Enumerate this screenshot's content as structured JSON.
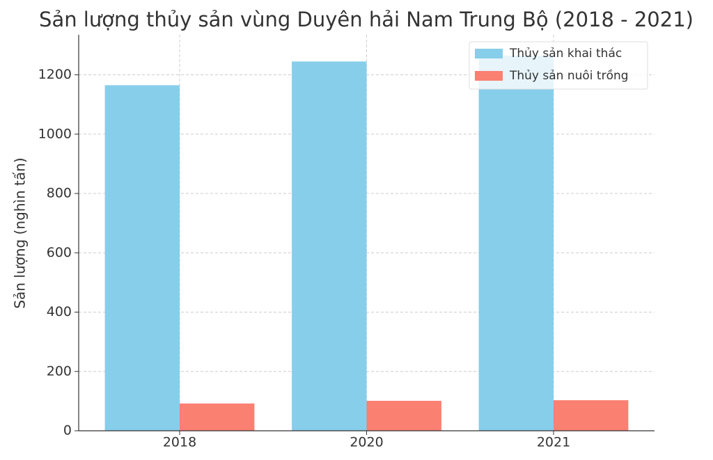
{
  "chart_data": {
    "type": "bar",
    "title": "Sản lượng thủy sản vùng Duyên hải Nam Trung Bộ (2018 - 2021)",
    "y_label": "Sản lượng (nghìn tấn)",
    "categories": [
      "2018",
      "2020",
      "2021"
    ],
    "series": [
      {
        "name": "Thủy sản khai thác",
        "color": "#87ceeb",
        "values": [
          1165,
          1245,
          1265
        ]
      },
      {
        "name": "Thủy sản nuôi trồng",
        "color": "#fa8072",
        "values": [
          92,
          101,
          103
        ]
      }
    ],
    "ylim": [
      0,
      1335
    ],
    "yticks": [
      0,
      200,
      400,
      600,
      800,
      1000,
      1200
    ],
    "grid": true,
    "legend": "upper-right"
  }
}
